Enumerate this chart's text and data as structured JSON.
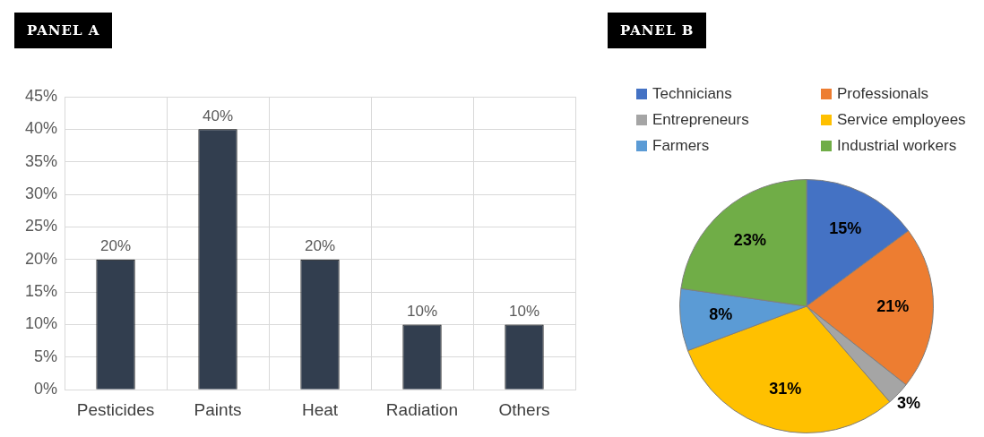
{
  "chart_data": [
    {
      "type": "bar",
      "title": "PANEL A",
      "categories": [
        "Pesticides",
        "Paints",
        "Heat",
        "Radiation",
        "Others"
      ],
      "values": [
        20,
        40,
        20,
        10,
        10
      ],
      "value_labels": [
        "20%",
        "40%",
        "20%",
        "10%",
        "10%"
      ],
      "color": "#323e4f",
      "ylim": [
        0,
        45
      ],
      "yticks": [
        {
          "value": 0,
          "label": "0%"
        },
        {
          "value": 5,
          "label": "5%"
        },
        {
          "value": 10,
          "label": "10%"
        },
        {
          "value": 15,
          "label": "15%"
        },
        {
          "value": 20,
          "label": "20%"
        },
        {
          "value": 25,
          "label": "25%"
        },
        {
          "value": 30,
          "label": "30%"
        },
        {
          "value": 35,
          "label": "35%"
        },
        {
          "value": 40,
          "label": "40%"
        },
        {
          "value": 45,
          "label": "45%"
        }
      ],
      "grid": true,
      "legend": false
    },
    {
      "type": "pie",
      "title": "PANEL B",
      "categories": [
        "Technicians",
        "Professionals",
        "Entrepreneurs",
        "Service employees",
        "Farmers",
        "Industrial workers"
      ],
      "values": [
        15,
        21,
        3,
        31,
        8,
        23
      ],
      "value_labels": [
        "15%",
        "21%",
        "3%",
        "31%",
        "8%",
        "23%"
      ],
      "colors": [
        "#4472c4",
        "#ed7d31",
        "#a5a5a5",
        "#ffc000",
        "#5b9bd5",
        "#70ad47"
      ],
      "legend": "top"
    }
  ]
}
